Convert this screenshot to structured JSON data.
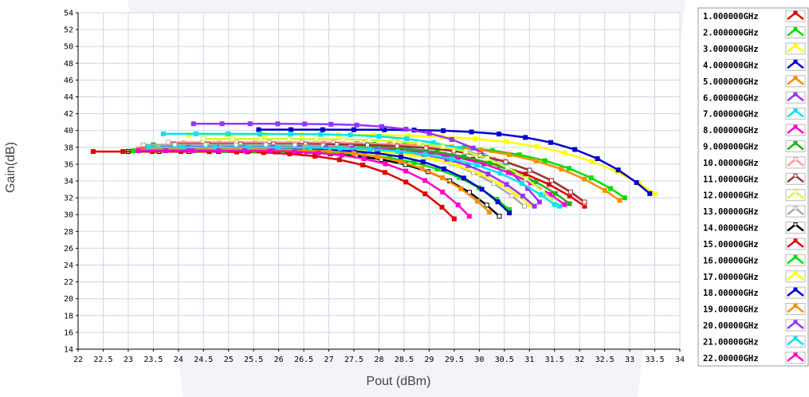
{
  "chart_data": {
    "type": "line",
    "title": "",
    "xlabel": "Pout (dBm)",
    "ylabel": "Gain(dB)",
    "xlim": [
      22,
      34
    ],
    "ylim": [
      14,
      54
    ],
    "x_ticks": [
      "22",
      "22.5",
      "23",
      "23.5",
      "24",
      "24.5",
      "25",
      "25.5",
      "26",
      "26.5",
      "27",
      "27.5",
      "28",
      "28.5",
      "29",
      "29.5",
      "30",
      "30.5",
      "31",
      "31.5",
      "32",
      "32.5",
      "33",
      "33.5",
      "34"
    ],
    "y_ticks": [
      "14",
      "16",
      "18",
      "20",
      "22",
      "24",
      "26",
      "28",
      "30",
      "32",
      "34",
      "36",
      "38",
      "40",
      "42",
      "44",
      "46",
      "48",
      "50",
      "52",
      "54"
    ],
    "grid": true,
    "legend_position": "right",
    "series": [
      {
        "name": "1.000000GHz",
        "color": "#e00000",
        "marker": "filled-square",
        "start": [
          23.3,
          38.0
        ],
        "sat_x": 32.1,
        "end_gain": 31.0
      },
      {
        "name": "2.000000GHz",
        "color": "#00e000",
        "marker": "filled-square",
        "start": [
          24.6,
          38.4
        ],
        "sat_x": 32.9,
        "end_gain": 32.0
      },
      {
        "name": "3.000000GHz",
        "color": "#ffff00",
        "marker": "filled-square",
        "start": [
          24.2,
          39.5
        ],
        "sat_x": 33.5,
        "end_gain": 32.5
      },
      {
        "name": "4.000000GHz",
        "color": "#0000cc",
        "marker": "filled-square",
        "start": [
          25.6,
          40.1
        ],
        "sat_x": 33.4,
        "end_gain": 32.5
      },
      {
        "name": "5.000000GHz",
        "color": "#ff8c00",
        "marker": "filled-square",
        "start": [
          24.1,
          38.5
        ],
        "sat_x": 32.8,
        "end_gain": 31.7
      },
      {
        "name": "6.000000GHz",
        "color": "#9933ff",
        "marker": "filled-square",
        "start": [
          24.3,
          40.8
        ],
        "sat_x": 31.2,
        "end_gain": 31.5
      },
      {
        "name": "7.000000GHz",
        "color": "#00e5ee",
        "marker": "filled-square",
        "start": [
          23.7,
          39.6
        ],
        "sat_x": 31.6,
        "end_gain": 31.0
      },
      {
        "name": "8.000000GHz",
        "color": "#ff00cc",
        "marker": "filled-square",
        "start": [
          23.3,
          38.2
        ],
        "sat_x": 31.7,
        "end_gain": 31.2
      },
      {
        "name": "9.000000GHz",
        "color": "#22b022",
        "marker": "filled-square",
        "start": [
          23.5,
          38.3
        ],
        "sat_x": 31.8,
        "end_gain": 31.3
      },
      {
        "name": "10.00000GHz",
        "color": "#ff9999",
        "marker": "open-square",
        "start": [
          23.8,
          38.6
        ],
        "sat_x": 32.1,
        "end_gain": 31.4
      },
      {
        "name": "11.00000GHz",
        "color": "#993333",
        "marker": "open-square",
        "start": [
          23.9,
          38.4
        ],
        "sat_x": 32.1,
        "end_gain": 31.5
      },
      {
        "name": "12.00000GHz",
        "color": "#ccff33",
        "marker": "open-square",
        "start": [
          24.5,
          39.0
        ],
        "sat_x": 31.5,
        "end_gain": 31.5
      },
      {
        "name": "13.00000GHz",
        "color": "#aaaaaa",
        "marker": "open-square",
        "start": [
          23.3,
          38.3
        ],
        "sat_x": 30.9,
        "end_gain": 31.0
      },
      {
        "name": "14.00000GHz",
        "color": "#000000",
        "marker": "open-square",
        "start": [
          23.0,
          37.5
        ],
        "sat_x": 30.4,
        "end_gain": 29.8
      },
      {
        "name": "15.00000GHz",
        "color": "#e00000",
        "marker": "filled-square",
        "start": [
          22.3,
          37.5
        ],
        "sat_x": 29.5,
        "end_gain": 29.5
      },
      {
        "name": "16.00000GHz",
        "color": "#00e000",
        "marker": "filled-square",
        "start": [
          23.1,
          37.6
        ],
        "sat_x": 30.6,
        "end_gain": 30.6
      },
      {
        "name": "17.00000GHz",
        "color": "#ffff00",
        "marker": "filled-square",
        "start": [
          23.6,
          37.9
        ],
        "sat_x": 31.0,
        "end_gain": 31.2
      },
      {
        "name": "18.00000GHz",
        "color": "#0000cc",
        "marker": "filled-square",
        "start": [
          23.8,
          37.8
        ],
        "sat_x": 30.6,
        "end_gain": 30.2
      },
      {
        "name": "19.00000GHz",
        "color": "#ff8c00",
        "marker": "filled-square",
        "start": [
          23.2,
          37.8
        ],
        "sat_x": 30.2,
        "end_gain": 30.3
      },
      {
        "name": "20.00000GHz",
        "color": "#9933ff",
        "marker": "filled-square",
        "start": [
          24.2,
          38.0
        ],
        "sat_x": 31.1,
        "end_gain": 31.0
      },
      {
        "name": "21.00000GHz",
        "color": "#00e5ee",
        "marker": "filled-square",
        "start": [
          23.4,
          38.0
        ],
        "sat_x": 31.5,
        "end_gain": 31.2
      },
      {
        "name": "22.00000GHz",
        "color": "#ff00cc",
        "marker": "filled-square",
        "start": [
          23.2,
          37.6
        ],
        "sat_x": 29.8,
        "end_gain": 29.8
      }
    ]
  }
}
